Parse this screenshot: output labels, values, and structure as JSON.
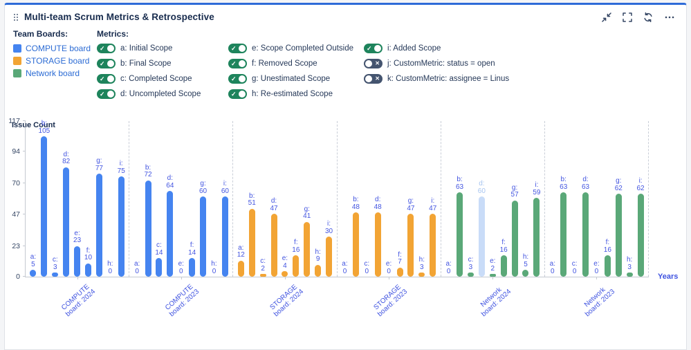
{
  "header": {
    "title": "Multi-team Scrum Metrics & Retrospective",
    "actions": [
      {
        "name": "collapse",
        "icon": "collapse-arrows-icon"
      },
      {
        "name": "expand",
        "icon": "fullscreen-brackets-icon"
      },
      {
        "name": "refresh",
        "icon": "refresh-icon"
      },
      {
        "name": "more",
        "icon": "ellipsis-icon"
      }
    ]
  },
  "team_boards": {
    "heading": "Team Boards:",
    "items": [
      {
        "label": "COMPUTE board",
        "color": "#4584F0"
      },
      {
        "label": "STORAGE board",
        "color": "#F2A434"
      },
      {
        "label": "Network board",
        "color": "#5AA878"
      }
    ]
  },
  "metrics": {
    "heading": "Metrics:",
    "columns": [
      [
        {
          "key": "a",
          "label": "a: Initial Scope",
          "on": true
        },
        {
          "key": "b",
          "label": "b: Final Scope",
          "on": true
        },
        {
          "key": "c",
          "label": "c: Completed Scope",
          "on": true
        },
        {
          "key": "d",
          "label": "d: Uncompleted Scope",
          "on": true
        }
      ],
      [
        {
          "key": "e",
          "label": "e: Scope Completed Outside",
          "on": true
        },
        {
          "key": "f",
          "label": "f: Removed Scope",
          "on": true
        },
        {
          "key": "g",
          "label": "g: Unestimated Scope",
          "on": true
        },
        {
          "key": "h",
          "label": "h: Re-estimated Scope",
          "on": true
        }
      ],
      [
        {
          "key": "i",
          "label": "i: Added Scope",
          "on": true
        },
        {
          "key": "j",
          "label": "j: CustomMetric: status = open",
          "on": false
        },
        {
          "key": "k",
          "label": "k: CustomMetric: assignee = Linus",
          "on": false
        }
      ]
    ]
  },
  "chart_data": {
    "type": "bar",
    "title": "Multi-team Scrum Metrics & Retrospective",
    "ylabel": "Issue Count",
    "xlabel": "Years",
    "ylim": [
      0,
      117
    ],
    "yticks": [
      0,
      23,
      47,
      70,
      94,
      117
    ],
    "grid": false,
    "legend_position": "top-left",
    "metric_keys": [
      "a",
      "b",
      "c",
      "d",
      "e",
      "f",
      "g",
      "h",
      "i"
    ],
    "groups": [
      {
        "category": "COMPUTE\nboard: 2024",
        "board": "COMPUTE board",
        "color": "#4584F0",
        "values": {
          "a": 5,
          "b": 105,
          "c": 3,
          "d": 82,
          "e": 23,
          "f": 10,
          "g": 77,
          "h": 0,
          "i": 75
        }
      },
      {
        "category": "COMPUTE\nboard: 2023",
        "board": "COMPUTE board",
        "color": "#4584F0",
        "values": {
          "a": 0,
          "b": 72,
          "c": 14,
          "d": 64,
          "e": 0,
          "f": 14,
          "g": 60,
          "h": 0,
          "i": 60
        }
      },
      {
        "category": "STORAGE\nboard: 2024",
        "board": "STORAGE board",
        "color": "#F2A434",
        "values": {
          "a": 12,
          "b": 51,
          "c": 2,
          "d": 47,
          "e": 4,
          "f": 16,
          "g": 41,
          "h": 9,
          "i": 30
        }
      },
      {
        "category": "STORAGE\nboard: 2023",
        "board": "STORAGE board",
        "color": "#F2A434",
        "values": {
          "a": 0,
          "b": 48,
          "c": 0,
          "d": 48,
          "e": 0,
          "f": 7,
          "g": 47,
          "h": 3,
          "i": 47
        }
      },
      {
        "category": "Network\nboard: 2024",
        "board": "Network board",
        "color": "#5AA878",
        "values": {
          "a": 0,
          "b": 63,
          "c": 3,
          "d": 60,
          "e": 2,
          "f": 16,
          "g": 57,
          "h": 5,
          "i": 59
        },
        "muted": [
          "d"
        ]
      },
      {
        "category": "Network\nboard: 2023",
        "board": "Network board",
        "color": "#5AA878",
        "values": {
          "a": 0,
          "b": 63,
          "c": 0,
          "d": 63,
          "e": 0,
          "f": 16,
          "g": 62,
          "h": 3,
          "i": 62
        }
      }
    ],
    "muted_bar_color": "#C9DCF8",
    "muted_label_color": "#A6C4F0",
    "label_color": "#4254E0"
  },
  "colors": {
    "card_top_accent": "#2E6BD8",
    "card_border": "#DFE1E6",
    "title_text": "#172B4D",
    "legend_link_text": "#2B6BD4",
    "toggle_on": "#1E845C",
    "toggle_off": "#44546F",
    "axis_line": "#C4C9D1",
    "axis_tick_text": "#344563",
    "x_label_text": "#3E52E0"
  }
}
